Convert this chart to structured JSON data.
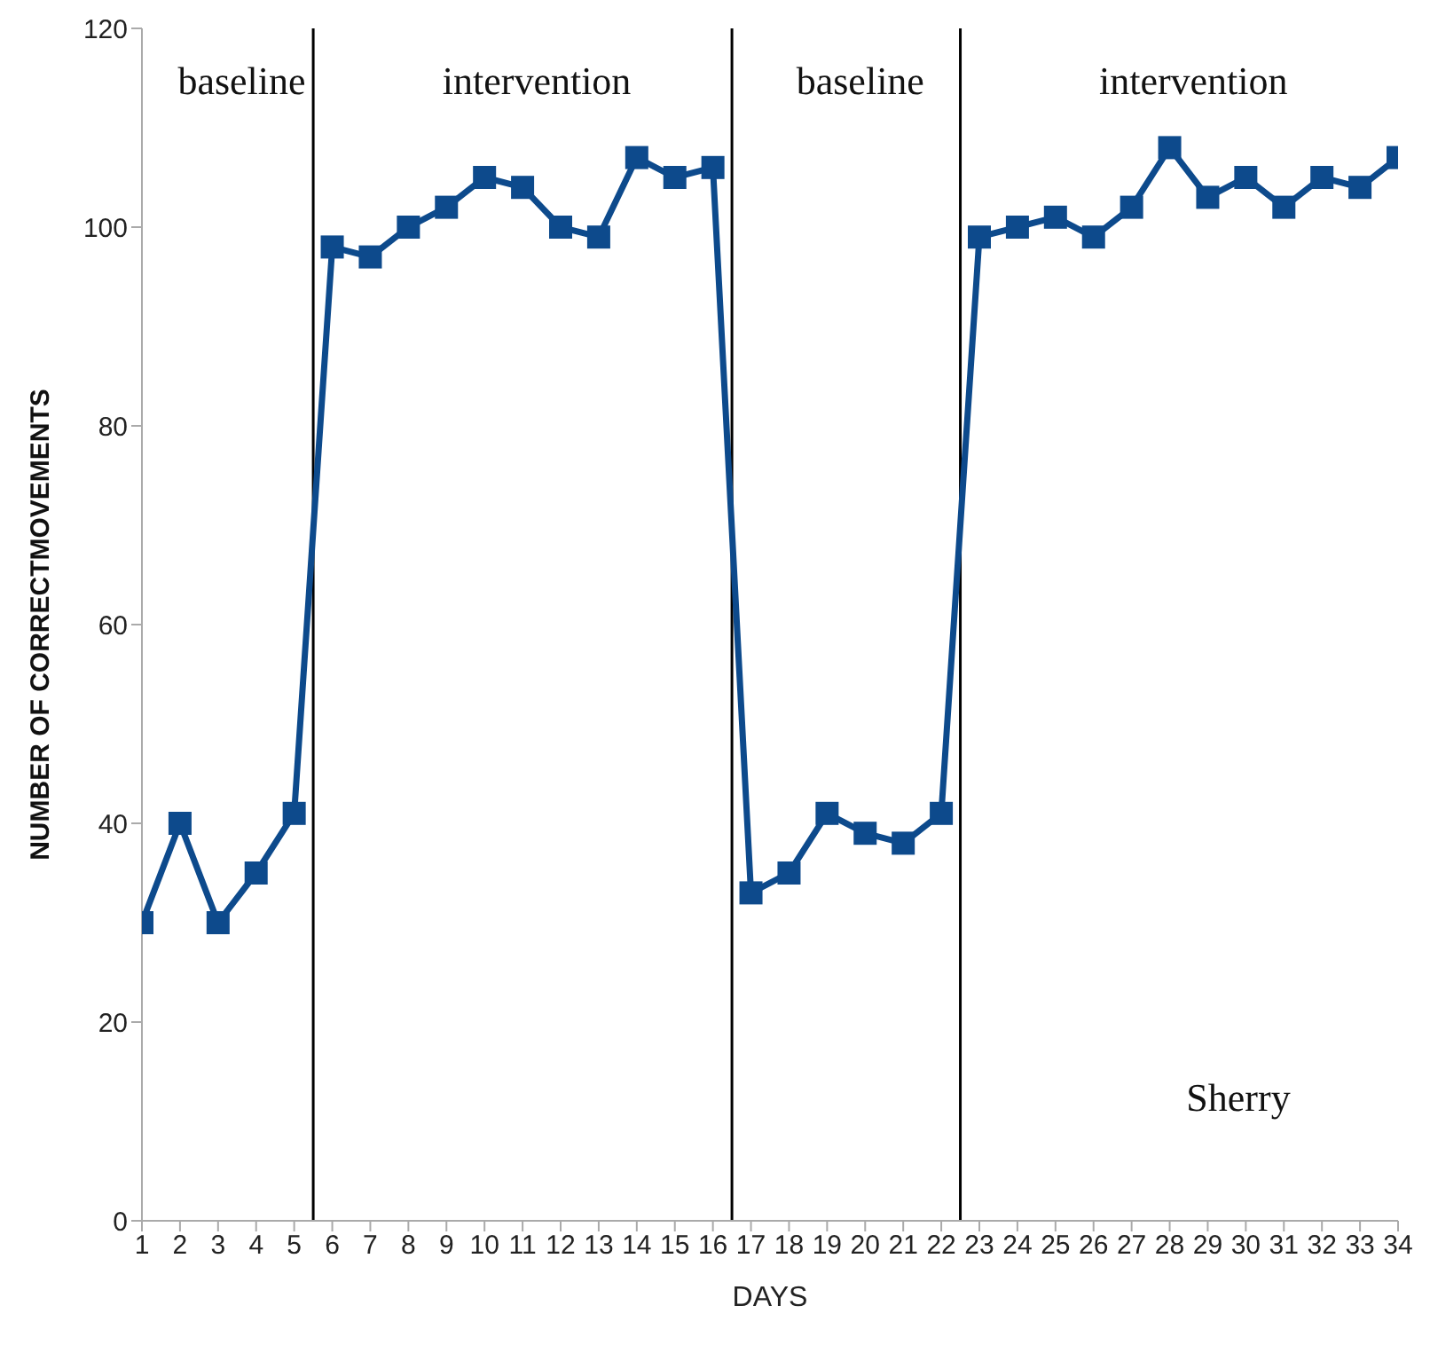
{
  "chart_data": {
    "type": "line",
    "xlabel": "DAYS",
    "ylabel": "NUMBER OF CORRECTMOVEMENTS",
    "x": [
      1,
      2,
      3,
      4,
      5,
      6,
      7,
      8,
      9,
      10,
      11,
      12,
      13,
      14,
      15,
      16,
      17,
      18,
      19,
      20,
      21,
      22,
      23,
      24,
      25,
      26,
      27,
      28,
      29,
      30,
      31,
      32,
      33,
      34
    ],
    "series": [
      {
        "color": "#0d4a8c",
        "values": [
          30,
          40,
          30,
          35,
          41,
          98,
          97,
          100,
          102,
          105,
          104,
          100,
          99,
          107,
          105,
          106,
          33,
          35,
          41,
          39,
          38,
          41,
          99,
          100,
          101,
          99,
          102,
          108,
          103,
          105,
          102,
          105,
          104,
          107
        ]
      }
    ],
    "xlim": [
      1,
      34
    ],
    "xticks": [
      1,
      2,
      3,
      4,
      5,
      6,
      7,
      8,
      9,
      10,
      11,
      12,
      13,
      14,
      15,
      16,
      17,
      18,
      19,
      20,
      21,
      22,
      23,
      24,
      25,
      26,
      27,
      28,
      29,
      30,
      31,
      32,
      33,
      34
    ],
    "ylim": [
      0,
      120
    ],
    "yticks": [
      0,
      20,
      40,
      60,
      80,
      100,
      120
    ],
    "ref_lines": [
      {
        "axis": "x",
        "value": 5.5,
        "color": "#000000"
      },
      {
        "axis": "x",
        "value": 16.5,
        "color": "#000000"
      },
      {
        "axis": "x",
        "value": 22.5,
        "color": "#000000"
      }
    ],
    "annotations": [
      "baseline",
      "intervention",
      "baseline",
      "intervention",
      "Sherry"
    ],
    "grid": false,
    "legend": false,
    "marker": "square",
    "line_style": "solid"
  }
}
